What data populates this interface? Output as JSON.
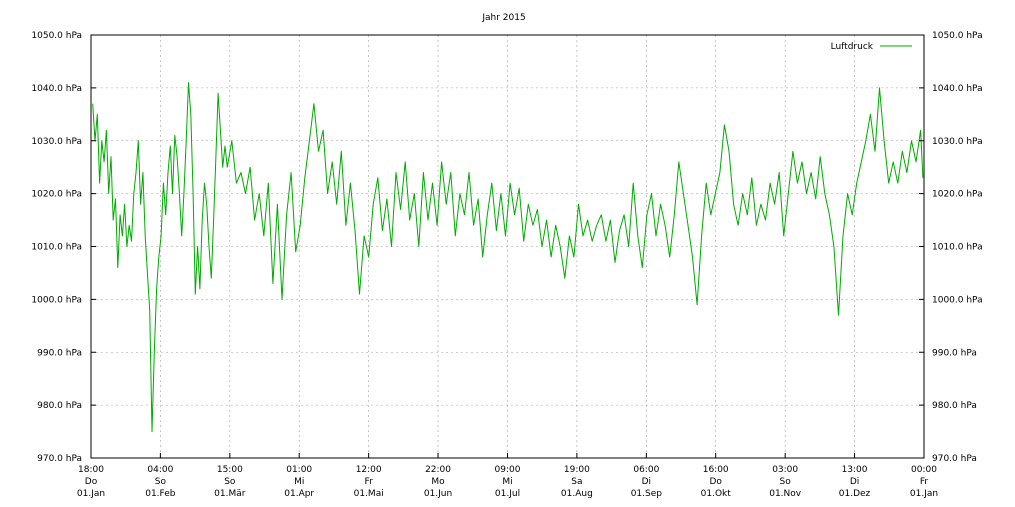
{
  "chart_data": {
    "type": "line",
    "title": "Jahr 2015",
    "ylim": [
      970,
      1050
    ],
    "y_ticks": [
      {
        "value": 970,
        "label": "970.0 hPa"
      },
      {
        "value": 980,
        "label": "980.0 hPa"
      },
      {
        "value": 990,
        "label": "990.0 hPa"
      },
      {
        "value": 1000,
        "label": "1000.0 hPa"
      },
      {
        "value": 1010,
        "label": "1010.0 hPa"
      },
      {
        "value": 1020,
        "label": "1020.0 hPa"
      },
      {
        "value": 1030,
        "label": "1030.0 hPa"
      },
      {
        "value": 1040,
        "label": "1040.0 hPa"
      },
      {
        "value": 1050,
        "label": "1050.0 hPa"
      }
    ],
    "x_range": [
      "2014-12-31T18:00",
      "2016-01-01T00:00"
    ],
    "x_ticks": [
      {
        "value": "2014-12-31T18:00",
        "time": "18:00",
        "weekday": "Do",
        "date": "01.Jan"
      },
      {
        "value": "2015-01-31T04:00",
        "time": "04:00",
        "weekday": "So",
        "date": "01.Feb"
      },
      {
        "value": "2015-03-02T15:00",
        "time": "15:00",
        "weekday": "So",
        "date": "01.Mär"
      },
      {
        "value": "2015-04-02T01:00",
        "time": "01:00",
        "weekday": "Mi",
        "date": "01.Apr"
      },
      {
        "value": "2015-05-02T12:00",
        "time": "12:00",
        "weekday": "Fr",
        "date": "01.Mai"
      },
      {
        "value": "2015-06-01T22:00",
        "time": "22:00",
        "weekday": "Mo",
        "date": "01.Jun"
      },
      {
        "value": "2015-07-02T09:00",
        "time": "09:00",
        "weekday": "Mi",
        "date": "01.Jul"
      },
      {
        "value": "2015-08-01T19:00",
        "time": "19:00",
        "weekday": "Sa",
        "date": "01.Aug"
      },
      {
        "value": "2015-09-01T06:00",
        "time": "06:00",
        "weekday": "Di",
        "date": "01.Sep"
      },
      {
        "value": "2015-10-01T16:00",
        "time": "16:00",
        "weekday": "Do",
        "date": "01.Okt"
      },
      {
        "value": "2015-11-01T03:00",
        "time": "03:00",
        "weekday": "So",
        "date": "01.Nov"
      },
      {
        "value": "2015-12-01T13:00",
        "time": "13:00",
        "weekday": "Di",
        "date": "01.Dez"
      },
      {
        "value": "2016-01-01T00:00",
        "time": "00:00",
        "weekday": "Fr",
        "date": "01.Jan"
      }
    ],
    "grid": true,
    "legend_position": "top-right",
    "series": [
      {
        "name": "Luftdruck",
        "color": "#00aa00",
        "points": [
          {
            "x": "2015-01-01",
            "y": 1037
          },
          {
            "x": "2015-01-02",
            "y": 1030
          },
          {
            "x": "2015-01-03",
            "y": 1035
          },
          {
            "x": "2015-01-04",
            "y": 1022
          },
          {
            "x": "2015-01-05",
            "y": 1030
          },
          {
            "x": "2015-01-06",
            "y": 1026
          },
          {
            "x": "2015-01-07",
            "y": 1032
          },
          {
            "x": "2015-01-08",
            "y": 1020
          },
          {
            "x": "2015-01-09",
            "y": 1027
          },
          {
            "x": "2015-01-10",
            "y": 1015
          },
          {
            "x": "2015-01-11",
            "y": 1019
          },
          {
            "x": "2015-01-12",
            "y": 1006
          },
          {
            "x": "2015-01-13",
            "y": 1016
          },
          {
            "x": "2015-01-14",
            "y": 1012
          },
          {
            "x": "2015-01-15",
            "y": 1018
          },
          {
            "x": "2015-01-16",
            "y": 1010
          },
          {
            "x": "2015-01-17",
            "y": 1014
          },
          {
            "x": "2015-01-18",
            "y": 1011
          },
          {
            "x": "2015-01-19",
            "y": 1020
          },
          {
            "x": "2015-01-20",
            "y": 1024
          },
          {
            "x": "2015-01-21",
            "y": 1030
          },
          {
            "x": "2015-01-22",
            "y": 1018
          },
          {
            "x": "2015-01-23",
            "y": 1024
          },
          {
            "x": "2015-01-24",
            "y": 1012
          },
          {
            "x": "2015-01-25",
            "y": 1005
          },
          {
            "x": "2015-01-26",
            "y": 998
          },
          {
            "x": "2015-01-27",
            "y": 975
          },
          {
            "x": "2015-01-28",
            "y": 990
          },
          {
            "x": "2015-01-29",
            "y": 1002
          },
          {
            "x": "2015-01-30",
            "y": 1008
          },
          {
            "x": "2015-01-31",
            "y": 1012
          },
          {
            "x": "2015-02-01",
            "y": 1022
          },
          {
            "x": "2015-02-02",
            "y": 1016
          },
          {
            "x": "2015-02-03",
            "y": 1024
          },
          {
            "x": "2015-02-04",
            "y": 1029
          },
          {
            "x": "2015-02-05",
            "y": 1020
          },
          {
            "x": "2015-02-06",
            "y": 1031
          },
          {
            "x": "2015-02-07",
            "y": 1027
          },
          {
            "x": "2015-02-08",
            "y": 1020
          },
          {
            "x": "2015-02-09",
            "y": 1012
          },
          {
            "x": "2015-02-10",
            "y": 1020
          },
          {
            "x": "2015-02-11",
            "y": 1030
          },
          {
            "x": "2015-02-12",
            "y": 1041
          },
          {
            "x": "2015-02-13",
            "y": 1035
          },
          {
            "x": "2015-02-14",
            "y": 1020
          },
          {
            "x": "2015-02-15",
            "y": 1001
          },
          {
            "x": "2015-02-16",
            "y": 1010
          },
          {
            "x": "2015-02-17",
            "y": 1002
          },
          {
            "x": "2015-02-18",
            "y": 1015
          },
          {
            "x": "2015-02-19",
            "y": 1022
          },
          {
            "x": "2015-02-20",
            "y": 1018
          },
          {
            "x": "2015-02-21",
            "y": 1010
          },
          {
            "x": "2015-02-22",
            "y": 1004
          },
          {
            "x": "2015-02-23",
            "y": 1015
          },
          {
            "x": "2015-02-24",
            "y": 1027
          },
          {
            "x": "2015-02-25",
            "y": 1039
          },
          {
            "x": "2015-02-26",
            "y": 1032
          },
          {
            "x": "2015-02-27",
            "y": 1025
          },
          {
            "x": "2015-02-28",
            "y": 1029
          },
          {
            "x": "2015-03-01",
            "y": 1025
          },
          {
            "x": "2015-03-03",
            "y": 1030
          },
          {
            "x": "2015-03-05",
            "y": 1022
          },
          {
            "x": "2015-03-07",
            "y": 1024
          },
          {
            "x": "2015-03-09",
            "y": 1020
          },
          {
            "x": "2015-03-11",
            "y": 1025
          },
          {
            "x": "2015-03-13",
            "y": 1015
          },
          {
            "x": "2015-03-15",
            "y": 1020
          },
          {
            "x": "2015-03-17",
            "y": 1012
          },
          {
            "x": "2015-03-19",
            "y": 1022
          },
          {
            "x": "2015-03-21",
            "y": 1003
          },
          {
            "x": "2015-03-23",
            "y": 1018
          },
          {
            "x": "2015-03-25",
            "y": 1000
          },
          {
            "x": "2015-03-27",
            "y": 1016
          },
          {
            "x": "2015-03-29",
            "y": 1024
          },
          {
            "x": "2015-03-31",
            "y": 1009
          },
          {
            "x": "2015-04-02",
            "y": 1014
          },
          {
            "x": "2015-04-04",
            "y": 1023
          },
          {
            "x": "2015-04-06",
            "y": 1030
          },
          {
            "x": "2015-04-08",
            "y": 1037
          },
          {
            "x": "2015-04-10",
            "y": 1028
          },
          {
            "x": "2015-04-12",
            "y": 1032
          },
          {
            "x": "2015-04-14",
            "y": 1020
          },
          {
            "x": "2015-04-16",
            "y": 1026
          },
          {
            "x": "2015-04-18",
            "y": 1018
          },
          {
            "x": "2015-04-20",
            "y": 1028
          },
          {
            "x": "2015-04-22",
            "y": 1014
          },
          {
            "x": "2015-04-24",
            "y": 1022
          },
          {
            "x": "2015-04-26",
            "y": 1013
          },
          {
            "x": "2015-04-28",
            "y": 1001
          },
          {
            "x": "2015-04-30",
            "y": 1012
          },
          {
            "x": "2015-05-02",
            "y": 1008
          },
          {
            "x": "2015-05-04",
            "y": 1018
          },
          {
            "x": "2015-05-06",
            "y": 1023
          },
          {
            "x": "2015-05-08",
            "y": 1013
          },
          {
            "x": "2015-05-10",
            "y": 1019
          },
          {
            "x": "2015-05-12",
            "y": 1010
          },
          {
            "x": "2015-05-14",
            "y": 1024
          },
          {
            "x": "2015-05-16",
            "y": 1017
          },
          {
            "x": "2015-05-18",
            "y": 1026
          },
          {
            "x": "2015-05-20",
            "y": 1015
          },
          {
            "x": "2015-05-22",
            "y": 1020
          },
          {
            "x": "2015-05-24",
            "y": 1010
          },
          {
            "x": "2015-05-26",
            "y": 1024
          },
          {
            "x": "2015-05-28",
            "y": 1015
          },
          {
            "x": "2015-05-30",
            "y": 1022
          },
          {
            "x": "2015-06-01",
            "y": 1014
          },
          {
            "x": "2015-06-03",
            "y": 1026
          },
          {
            "x": "2015-06-05",
            "y": 1018
          },
          {
            "x": "2015-06-07",
            "y": 1024
          },
          {
            "x": "2015-06-09",
            "y": 1012
          },
          {
            "x": "2015-06-11",
            "y": 1020
          },
          {
            "x": "2015-06-13",
            "y": 1016
          },
          {
            "x": "2015-06-15",
            "y": 1024
          },
          {
            "x": "2015-06-17",
            "y": 1014
          },
          {
            "x": "2015-06-19",
            "y": 1019
          },
          {
            "x": "2015-06-21",
            "y": 1008
          },
          {
            "x": "2015-06-23",
            "y": 1016
          },
          {
            "x": "2015-06-25",
            "y": 1022
          },
          {
            "x": "2015-06-27",
            "y": 1013
          },
          {
            "x": "2015-06-29",
            "y": 1020
          },
          {
            "x": "2015-07-01",
            "y": 1012
          },
          {
            "x": "2015-07-03",
            "y": 1022
          },
          {
            "x": "2015-07-05",
            "y": 1016
          },
          {
            "x": "2015-07-07",
            "y": 1021
          },
          {
            "x": "2015-07-09",
            "y": 1011
          },
          {
            "x": "2015-07-11",
            "y": 1018
          },
          {
            "x": "2015-07-13",
            "y": 1014
          },
          {
            "x": "2015-07-15",
            "y": 1017
          },
          {
            "x": "2015-07-17",
            "y": 1010
          },
          {
            "x": "2015-07-19",
            "y": 1015
          },
          {
            "x": "2015-07-21",
            "y": 1008
          },
          {
            "x": "2015-07-23",
            "y": 1014
          },
          {
            "x": "2015-07-25",
            "y": 1010
          },
          {
            "x": "2015-07-27",
            "y": 1004
          },
          {
            "x": "2015-07-29",
            "y": 1012
          },
          {
            "x": "2015-07-31",
            "y": 1008
          },
          {
            "x": "2015-08-02",
            "y": 1018
          },
          {
            "x": "2015-08-04",
            "y": 1012
          },
          {
            "x": "2015-08-06",
            "y": 1015
          },
          {
            "x": "2015-08-08",
            "y": 1011
          },
          {
            "x": "2015-08-10",
            "y": 1014
          },
          {
            "x": "2015-08-12",
            "y": 1016
          },
          {
            "x": "2015-08-14",
            "y": 1011
          },
          {
            "x": "2015-08-16",
            "y": 1015
          },
          {
            "x": "2015-08-18",
            "y": 1007
          },
          {
            "x": "2015-08-20",
            "y": 1013
          },
          {
            "x": "2015-08-22",
            "y": 1016
          },
          {
            "x": "2015-08-24",
            "y": 1010
          },
          {
            "x": "2015-08-26",
            "y": 1022
          },
          {
            "x": "2015-08-28",
            "y": 1012
          },
          {
            "x": "2015-08-30",
            "y": 1006
          },
          {
            "x": "2015-09-01",
            "y": 1016
          },
          {
            "x": "2015-09-03",
            "y": 1020
          },
          {
            "x": "2015-09-05",
            "y": 1012
          },
          {
            "x": "2015-09-07",
            "y": 1018
          },
          {
            "x": "2015-09-09",
            "y": 1014
          },
          {
            "x": "2015-09-11",
            "y": 1008
          },
          {
            "x": "2015-09-13",
            "y": 1016
          },
          {
            "x": "2015-09-15",
            "y": 1026
          },
          {
            "x": "2015-09-17",
            "y": 1020
          },
          {
            "x": "2015-09-19",
            "y": 1014
          },
          {
            "x": "2015-09-21",
            "y": 1008
          },
          {
            "x": "2015-09-23",
            "y": 999
          },
          {
            "x": "2015-09-25",
            "y": 1012
          },
          {
            "x": "2015-09-27",
            "y": 1022
          },
          {
            "x": "2015-09-29",
            "y": 1016
          },
          {
            "x": "2015-10-01",
            "y": 1020
          },
          {
            "x": "2015-10-03",
            "y": 1024
          },
          {
            "x": "2015-10-05",
            "y": 1033
          },
          {
            "x": "2015-10-07",
            "y": 1028
          },
          {
            "x": "2015-10-09",
            "y": 1018
          },
          {
            "x": "2015-10-11",
            "y": 1014
          },
          {
            "x": "2015-10-13",
            "y": 1020
          },
          {
            "x": "2015-10-15",
            "y": 1016
          },
          {
            "x": "2015-10-17",
            "y": 1023
          },
          {
            "x": "2015-10-19",
            "y": 1014
          },
          {
            "x": "2015-10-21",
            "y": 1018
          },
          {
            "x": "2015-10-23",
            "y": 1015
          },
          {
            "x": "2015-10-25",
            "y": 1022
          },
          {
            "x": "2015-10-27",
            "y": 1018
          },
          {
            "x": "2015-10-29",
            "y": 1024
          },
          {
            "x": "2015-10-31",
            "y": 1012
          },
          {
            "x": "2015-11-02",
            "y": 1020
          },
          {
            "x": "2015-11-04",
            "y": 1028
          },
          {
            "x": "2015-11-06",
            "y": 1022
          },
          {
            "x": "2015-11-08",
            "y": 1026
          },
          {
            "x": "2015-11-10",
            "y": 1020
          },
          {
            "x": "2015-11-12",
            "y": 1024
          },
          {
            "x": "2015-11-14",
            "y": 1019
          },
          {
            "x": "2015-11-16",
            "y": 1027
          },
          {
            "x": "2015-11-18",
            "y": 1020
          },
          {
            "x": "2015-11-20",
            "y": 1016
          },
          {
            "x": "2015-11-22",
            "y": 1010
          },
          {
            "x": "2015-11-24",
            "y": 997
          },
          {
            "x": "2015-11-26",
            "y": 1012
          },
          {
            "x": "2015-11-28",
            "y": 1020
          },
          {
            "x": "2015-11-30",
            "y": 1016
          },
          {
            "x": "2015-12-02",
            "y": 1022
          },
          {
            "x": "2015-12-04",
            "y": 1026
          },
          {
            "x": "2015-12-06",
            "y": 1030
          },
          {
            "x": "2015-12-08",
            "y": 1035
          },
          {
            "x": "2015-12-10",
            "y": 1028
          },
          {
            "x": "2015-12-12",
            "y": 1040
          },
          {
            "x": "2015-12-14",
            "y": 1030
          },
          {
            "x": "2015-12-16",
            "y": 1022
          },
          {
            "x": "2015-12-18",
            "y": 1026
          },
          {
            "x": "2015-12-20",
            "y": 1022
          },
          {
            "x": "2015-12-22",
            "y": 1028
          },
          {
            "x": "2015-12-24",
            "y": 1024
          },
          {
            "x": "2015-12-26",
            "y": 1030
          },
          {
            "x": "2015-12-28",
            "y": 1026
          },
          {
            "x": "2015-12-30",
            "y": 1032
          },
          {
            "x": "2015-12-31",
            "y": 1023
          }
        ]
      }
    ]
  }
}
